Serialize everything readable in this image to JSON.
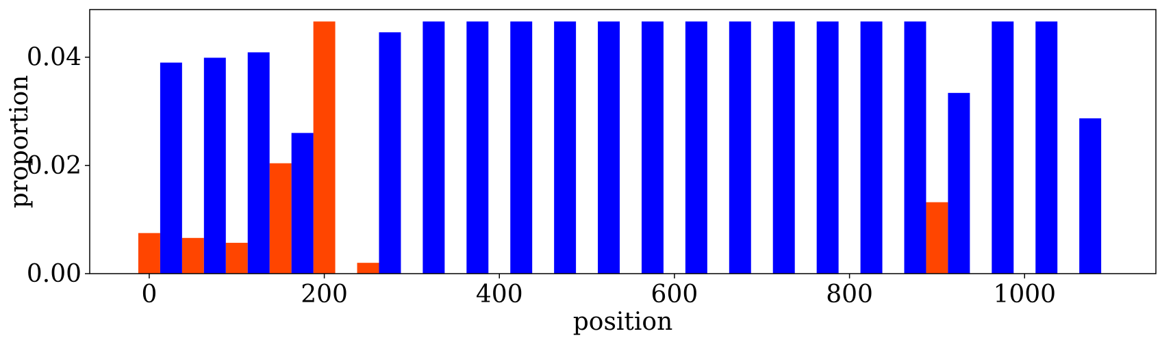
{
  "colors": {
    "series_orange": "#ff4500",
    "series_blue": "#0000ff",
    "axis": "#000000"
  },
  "chart_data": {
    "type": "bar",
    "xlabel": "position",
    "ylabel": "proportion",
    "xlim": [
      -68,
      1150
    ],
    "ylim": [
      0,
      0.0488
    ],
    "x_ticks": [
      0,
      200,
      400,
      600,
      800,
      1000
    ],
    "x_tick_labels": [
      "0",
      "200",
      "400",
      "600",
      "800",
      "1000"
    ],
    "y_ticks": [
      0,
      0.02,
      0.04
    ],
    "y_tick_labels": [
      "0.00",
      "0.02",
      "0.04"
    ],
    "grid": false,
    "legend": false,
    "bar_width": 25,
    "series": [
      {
        "color": "#ff4500",
        "points": [
          {
            "x": 0,
            "y": 0.0075
          },
          {
            "x": 50,
            "y": 0.0066
          },
          {
            "x": 100,
            "y": 0.0057
          },
          {
            "x": 150,
            "y": 0.0204
          },
          {
            "x": 200,
            "y": 0.0466
          },
          {
            "x": 250,
            "y": 0.002
          },
          {
            "x": 900,
            "y": 0.0132
          }
        ]
      },
      {
        "color": "#0000ff",
        "points": [
          {
            "x": 25,
            "y": 0.039
          },
          {
            "x": 75,
            "y": 0.0399
          },
          {
            "x": 125,
            "y": 0.0409
          },
          {
            "x": 175,
            "y": 0.026
          },
          {
            "x": 275,
            "y": 0.0446
          },
          {
            "x": 325,
            "y": 0.0466
          },
          {
            "x": 375,
            "y": 0.0466
          },
          {
            "x": 425,
            "y": 0.0466
          },
          {
            "x": 475,
            "y": 0.0466
          },
          {
            "x": 525,
            "y": 0.0466
          },
          {
            "x": 575,
            "y": 0.0466
          },
          {
            "x": 625,
            "y": 0.0466
          },
          {
            "x": 675,
            "y": 0.0466
          },
          {
            "x": 725,
            "y": 0.0466
          },
          {
            "x": 775,
            "y": 0.0466
          },
          {
            "x": 825,
            "y": 0.0466
          },
          {
            "x": 875,
            "y": 0.0466
          },
          {
            "x": 925,
            "y": 0.0334
          },
          {
            "x": 975,
            "y": 0.0466
          },
          {
            "x": 1025,
            "y": 0.0466
          },
          {
            "x": 1075,
            "y": 0.0287
          }
        ]
      }
    ]
  }
}
